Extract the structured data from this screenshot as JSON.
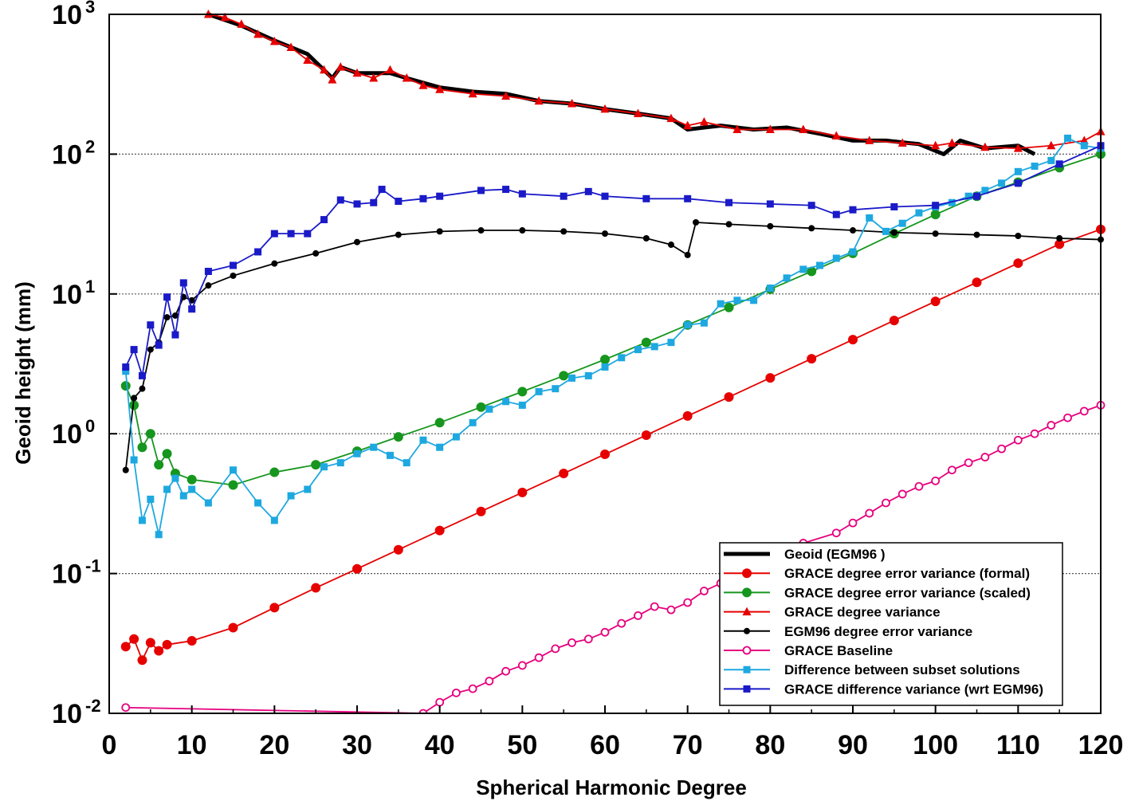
{
  "chart_data": {
    "type": "line",
    "title": "",
    "xlabel": "Spherical Harmonic Degree",
    "ylabel": "Geoid height (mm)",
    "x_scale": "linear",
    "y_scale": "log",
    "xlim": [
      0,
      120
    ],
    "ylim": [
      0.01,
      1000
    ],
    "x_ticks": [
      "0",
      "10",
      "20",
      "30",
      "40",
      "50",
      "60",
      "70",
      "80",
      "90",
      "100",
      "110",
      "120"
    ],
    "y_ticks": [
      {
        "base": "10",
        "exp": "-2",
        "value": 0.01
      },
      {
        "base": "10",
        "exp": "-1",
        "value": 0.1
      },
      {
        "base": "10",
        "exp": "0",
        "value": 1
      },
      {
        "base": "10",
        "exp": "1",
        "value": 10
      },
      {
        "base": "10",
        "exp": "2",
        "value": 100
      },
      {
        "base": "10",
        "exp": "3",
        "value": 1000
      }
    ],
    "grid": "horizontal dotted lines at 0.1, 1, 10, 100",
    "legend_position": "bottom-right",
    "series": [
      {
        "name": "Geoid (EGM96 )",
        "color": "#000000",
        "marker": "none",
        "line_width": 5,
        "x": [
          12,
          16,
          20,
          24,
          27,
          28,
          30,
          34,
          36,
          40,
          44,
          48,
          52,
          56,
          60,
          64,
          68,
          70,
          74,
          78,
          82,
          86,
          90,
          94,
          98,
          101,
          103,
          106,
          110,
          112
        ],
        "y": [
          1000,
          830,
          650,
          520,
          350,
          420,
          380,
          380,
          350,
          300,
          280,
          270,
          240,
          230,
          210,
          195,
          180,
          150,
          160,
          150,
          155,
          140,
          125,
          125,
          118,
          100,
          125,
          110,
          115,
          100
        ]
      },
      {
        "name": "GRACE degree error variance (formal)",
        "color": "#e60000",
        "marker": "filled-circle",
        "x": [
          2,
          3,
          4,
          5,
          6,
          7,
          10,
          15,
          20,
          25,
          30,
          35,
          40,
          45,
          50,
          55,
          60,
          65,
          70,
          75,
          80,
          85,
          90,
          95,
          100,
          105,
          110,
          115,
          120
        ],
        "y": [
          0.03,
          0.034,
          0.024,
          0.032,
          0.028,
          0.031,
          0.033,
          0.041,
          0.057,
          0.079,
          0.108,
          0.148,
          0.203,
          0.278,
          0.38,
          0.52,
          0.713,
          0.977,
          1.34,
          1.83,
          2.51,
          3.44,
          4.71,
          6.46,
          8.85,
          12.1,
          16.6,
          22.7,
          29.0
        ]
      },
      {
        "name": "GRACE degree error variance (scaled)",
        "color": "#16961e",
        "marker": "filled-circle",
        "x": [
          2,
          3,
          4,
          5,
          6,
          7,
          8,
          10,
          15,
          20,
          25,
          30,
          35,
          40,
          45,
          50,
          55,
          60,
          65,
          70,
          75,
          80,
          85,
          90,
          95,
          100,
          105,
          110,
          115,
          120
        ],
        "y": [
          2.2,
          1.6,
          0.8,
          1.0,
          0.6,
          0.72,
          0.52,
          0.47,
          0.43,
          0.53,
          0.6,
          0.75,
          0.95,
          1.2,
          1.55,
          2.0,
          2.6,
          3.4,
          4.5,
          6.0,
          8.0,
          10.8,
          14.5,
          19.5,
          27.0,
          37.0,
          50.0,
          63.0,
          80.0,
          100.0
        ]
      },
      {
        "name": "GRACE degree variance",
        "color": "#e60000",
        "marker": "filled-triangle",
        "x": [
          12,
          14,
          16,
          18,
          20,
          22,
          24,
          26,
          27,
          28,
          30,
          32,
          34,
          36,
          38,
          40,
          44,
          48,
          52,
          56,
          60,
          64,
          68,
          70,
          72,
          76,
          80,
          84,
          88,
          92,
          96,
          100,
          102,
          106,
          110,
          114,
          118,
          120
        ],
        "y": [
          1000,
          950,
          850,
          720,
          640,
          580,
          470,
          400,
          340,
          420,
          380,
          350,
          400,
          350,
          310,
          290,
          270,
          260,
          240,
          230,
          210,
          195,
          180,
          160,
          170,
          150,
          150,
          150,
          135,
          125,
          120,
          115,
          120,
          112,
          110,
          115,
          125,
          145
        ]
      },
      {
        "name": "EGM96 degree error variance",
        "color": "#000000",
        "marker": "filled-circle-small",
        "x": [
          2,
          3,
          4,
          5,
          6,
          7,
          8,
          9,
          10,
          12,
          15,
          20,
          25,
          30,
          35,
          40,
          45,
          50,
          55,
          60,
          65,
          68,
          70,
          71,
          75,
          80,
          85,
          90,
          95,
          100,
          105,
          110,
          115,
          120
        ],
        "y": [
          0.55,
          1.8,
          2.1,
          4.0,
          4.5,
          6.8,
          7.0,
          9.5,
          9.0,
          11.5,
          13.5,
          16.5,
          19.5,
          23.5,
          26.5,
          28.0,
          28.5,
          28.5,
          28.0,
          27.0,
          25.0,
          22.5,
          19.0,
          32.5,
          31.5,
          30.5,
          29.5,
          28.5,
          27.5,
          27.0,
          26.5,
          26.0,
          25.0,
          24.5
        ]
      },
      {
        "name": "GRACE Baseline",
        "color": "#e6007e",
        "marker": "open-circle",
        "x": [
          2,
          38,
          40,
          42,
          44,
          46,
          48,
          50,
          52,
          54,
          56,
          58,
          60,
          62,
          64,
          66,
          68,
          70,
          72,
          74,
          76,
          78,
          80,
          84,
          88,
          90,
          92,
          94,
          96,
          98,
          100,
          102,
          104,
          106,
          108,
          110,
          112,
          114,
          116,
          118,
          120
        ],
        "y": [
          0.011,
          0.01,
          0.012,
          0.014,
          0.015,
          0.017,
          0.02,
          0.022,
          0.025,
          0.029,
          0.032,
          0.034,
          0.038,
          0.044,
          0.05,
          0.058,
          0.055,
          0.062,
          0.075,
          0.085,
          0.1,
          0.12,
          0.13,
          0.165,
          0.195,
          0.23,
          0.27,
          0.32,
          0.37,
          0.42,
          0.46,
          0.55,
          0.62,
          0.68,
          0.78,
          0.9,
          1.0,
          1.15,
          1.3,
          1.45,
          1.6
        ]
      },
      {
        "name": "Difference between subset solutions",
        "color": "#1ea8e0",
        "marker": "filled-square",
        "x": [
          2,
          3,
          4,
          5,
          6,
          7,
          8,
          9,
          10,
          12,
          15,
          18,
          20,
          22,
          24,
          26,
          28,
          30,
          32,
          34,
          36,
          38,
          40,
          42,
          44,
          46,
          48,
          50,
          52,
          54,
          56,
          58,
          60,
          62,
          64,
          66,
          68,
          70,
          72,
          74,
          76,
          78,
          80,
          82,
          84,
          86,
          88,
          90,
          92,
          94,
          96,
          98,
          100,
          102,
          104,
          106,
          108,
          110,
          112,
          114,
          116,
          118,
          120
        ],
        "y": [
          2.8,
          0.65,
          0.24,
          0.34,
          0.19,
          0.4,
          0.48,
          0.36,
          0.4,
          0.32,
          0.55,
          0.32,
          0.24,
          0.36,
          0.4,
          0.58,
          0.62,
          0.72,
          0.8,
          0.7,
          0.62,
          0.9,
          0.8,
          0.95,
          1.2,
          1.5,
          1.7,
          1.6,
          2.0,
          2.1,
          2.5,
          2.6,
          3.0,
          3.5,
          4.0,
          4.2,
          4.5,
          6.0,
          6.2,
          8.5,
          9.0,
          9.0,
          11.0,
          13.0,
          15.0,
          16.0,
          18.0,
          20.0,
          35.0,
          28.0,
          32.0,
          38.0,
          42.0,
          45.0,
          50.0,
          55.0,
          62.0,
          75.0,
          82.0,
          90.0,
          130.0,
          115.0,
          110.0
        ]
      },
      {
        "name": "GRACE difference variance (wrt EGM96)",
        "color": "#1a1ac8",
        "marker": "filled-square",
        "x": [
          2,
          3,
          4,
          5,
          6,
          7,
          8,
          9,
          10,
          12,
          15,
          18,
          20,
          22,
          24,
          26,
          28,
          30,
          32,
          33,
          35,
          38,
          40,
          45,
          48,
          50,
          55,
          58,
          60,
          65,
          70,
          75,
          80,
          85,
          88,
          90,
          95,
          100,
          105,
          110,
          115,
          120
        ],
        "y": [
          3.0,
          4.0,
          2.6,
          6.0,
          4.3,
          9.5,
          5.1,
          12.0,
          7.8,
          14.5,
          16.0,
          20.0,
          27.0,
          27.0,
          27.0,
          34.0,
          47.0,
          44.0,
          45.0,
          56.0,
          46.0,
          48.0,
          50.0,
          55.0,
          56.0,
          52.0,
          50.0,
          54.0,
          50.0,
          48.0,
          48.0,
          45.0,
          44.0,
          43.0,
          37.0,
          40.0,
          42.0,
          43.0,
          50.0,
          62.0,
          85.0,
          115.0
        ]
      }
    ]
  }
}
